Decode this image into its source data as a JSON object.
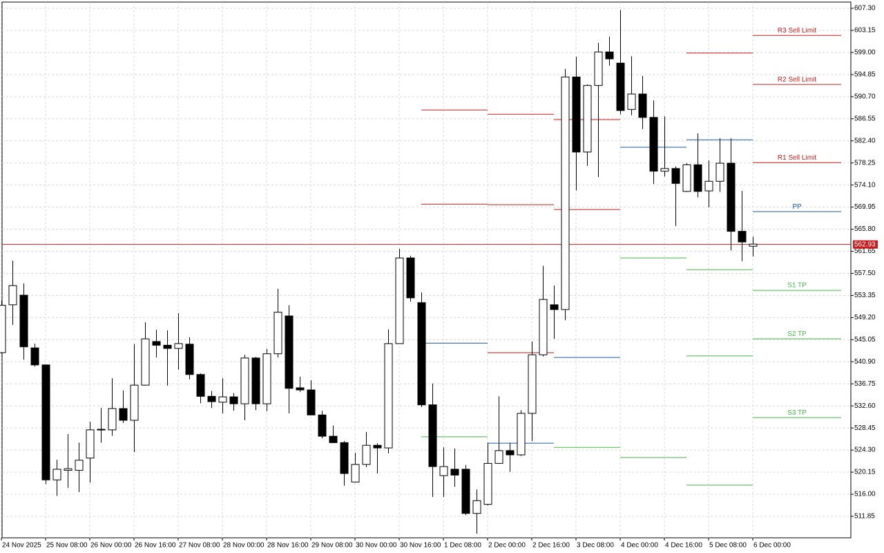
{
  "chart_data": {
    "type": "candlestick",
    "categories": [
      "24 Nov 2025",
      null,
      null,
      null,
      "25 Nov 08:00",
      null,
      null,
      null,
      "26 Nov 00:00",
      null,
      null,
      null,
      "26 Nov 16:00",
      null,
      null,
      null,
      "27 Nov 08:00",
      null,
      null,
      null,
      "28 Nov 00:00",
      null,
      null,
      null,
      "28 Nov 16:00",
      null,
      null,
      null,
      "29 Nov 08:00",
      null,
      null,
      null,
      "30 Nov 00:00",
      null,
      null,
      null,
      "30 Nov 16:00",
      null,
      null,
      null,
      "1 Dec 08:00",
      null,
      null,
      null,
      "2 Dec 00:00",
      null,
      null,
      null,
      "2 Dec 16:00",
      null,
      null,
      null,
      "3 Dec 08:00",
      null,
      null,
      null,
      "4 Dec 00:00",
      null,
      null,
      null,
      "4 Dec 16:00",
      null,
      null,
      null,
      "5 Dec 08:00",
      null,
      null,
      null,
      "6 Dec 00:00"
    ],
    "open": [
      542.6,
      551.6,
      553.4,
      543.5,
      540.3,
      518.7,
      520.5,
      520.5,
      522.8,
      528.1,
      528.1,
      532.1,
      529.9,
      536.5,
      544.7,
      544.0,
      543.4,
      544.2,
      538.5,
      534.4,
      533.3,
      534.3,
      533.0,
      541.6,
      533.0,
      542.4,
      549.5,
      536.0,
      535.6,
      530.9,
      526.9,
      525.7,
      518.3,
      521.6,
      525.2,
      524.7,
      544.3,
      560.4,
      552.0,
      532.8,
      519.5,
      520.7,
      520.7,
      512.4,
      514.1,
      521.8,
      524.2,
      523.4,
      531.2,
      542.2,
      551.6,
      550.7,
      594.4,
      580.3,
      592.8,
      599.1,
      597.0,
      588.3,
      591.2,
      586.8,
      576.7,
      577.2,
      572.9,
      577.9,
      573.0,
      574.8,
      578.2,
      565.4,
      562.6
    ],
    "high": [
      552.4,
      559.9,
      555.6,
      544.3,
      540.3,
      522.5,
      527.3,
      525.7,
      529.6,
      532.2,
      537.8,
      535.5,
      544.2,
      548.3,
      546.9,
      546.8,
      550.0,
      545.5,
      538.7,
      535.4,
      537.8,
      535.0,
      542.2,
      541.8,
      543.3,
      554.6,
      551.5,
      538.1,
      537.4,
      531.7,
      528.9,
      526.0,
      523.8,
      527.7,
      525.6,
      547.0,
      562.1,
      560.8,
      553.9,
      536.8,
      524.8,
      524.6,
      521.5,
      516.9,
      525.7,
      534.4,
      525.7,
      531.8,
      544.7,
      558.9,
      555.2,
      595.9,
      598.2,
      593.0,
      600.8,
      602.0,
      607.0,
      598.3,
      594.6,
      590.0,
      587.0,
      577.6,
      578.2,
      583.8,
      578.7,
      582.9,
      582.9,
      573.0,
      564.4
    ],
    "low": [
      542.4,
      547.8,
      541.3,
      540.0,
      517.9,
      515.7,
      517.2,
      516.4,
      518.2,
      525.7,
      527.0,
      529.4,
      523.9,
      536.4,
      541.7,
      536.4,
      539.4,
      537.6,
      533.1,
      532.2,
      531.2,
      531.7,
      529.9,
      531.8,
      531.6,
      541.7,
      531.2,
      535.2,
      530.9,
      526.5,
      525.6,
      517.6,
      518.2,
      521.1,
      519.9,
      523.7,
      544.3,
      552.2,
      532.4,
      515.5,
      515.5,
      517.4,
      512.1,
      508.6,
      513.9,
      521.7,
      520.2,
      523.2,
      526.0,
      541.9,
      545.2,
      548.7,
      573.1,
      577.7,
      575.6,
      596.5,
      587.4,
      587.2,
      584.6,
      574.3,
      575.7,
      566.4,
      572.8,
      571.8,
      569.9,
      572.8,
      561.8,
      559.8,
      560.7
    ],
    "close": [
      551.5,
      555.2,
      543.7,
      540.3,
      518.7,
      520.7,
      520.8,
      522.4,
      528.1,
      528.2,
      532.1,
      529.9,
      536.5,
      545.2,
      544.0,
      543.4,
      544.3,
      538.5,
      534.4,
      533.4,
      534.3,
      533.0,
      541.6,
      533.0,
      542.4,
      550.2,
      535.9,
      535.6,
      530.9,
      526.9,
      525.7,
      519.9,
      521.6,
      525.2,
      524.7,
      544.3,
      560.4,
      552.9,
      532.8,
      521.2,
      521.2,
      519.6,
      512.4,
      514.8,
      521.8,
      524.2,
      523.4,
      531.2,
      542.2,
      552.6,
      550.7,
      594.4,
      580.3,
      592.8,
      599.1,
      597.8,
      588.1,
      591.2,
      586.8,
      576.7,
      577.2,
      574.4,
      577.9,
      572.9,
      574.8,
      578.2,
      565.4,
      563.4,
      563.0
    ],
    "up_color": "#ffffff",
    "down_color": "#000000",
    "ylim": [
      507.82,
      608.47
    ],
    "yticks": [
      {
        "value": 607.3,
        "label": "607.30"
      },
      {
        "value": 603.15,
        "label": "603.15"
      },
      {
        "value": 599,
        "label": "599.00"
      },
      {
        "value": 594.85,
        "label": "594.85"
      },
      {
        "value": 590.7,
        "label": "590.70"
      },
      {
        "value": 586.55,
        "label": "586.55"
      },
      {
        "value": 582.4,
        "label": "582.40"
      },
      {
        "value": 578.25,
        "label": "578.25"
      },
      {
        "value": 574.1,
        "label": "574.10"
      },
      {
        "value": 569.95,
        "label": "569.95"
      },
      {
        "value": 565.8,
        "label": "565.80"
      },
      {
        "value": 561.65,
        "label": "561.65"
      },
      {
        "value": 557.5,
        "label": "557.50"
      },
      {
        "value": 553.35,
        "label": "553.35"
      },
      {
        "value": 549.2,
        "label": "549.20"
      },
      {
        "value": 545.05,
        "label": "545.05"
      },
      {
        "value": 540.9,
        "label": "540.90"
      },
      {
        "value": 536.75,
        "label": "536.75"
      },
      {
        "value": 532.6,
        "label": "532.60"
      },
      {
        "value": 528.45,
        "label": "528.45"
      },
      {
        "value": 524.3,
        "label": "524.30"
      },
      {
        "value": 520.15,
        "label": "520.15"
      },
      {
        "value": 516,
        "label": "516.00"
      },
      {
        "value": 511.85,
        "label": "511.85"
      }
    ],
    "grid": true,
    "last_price": 562.93,
    "last_price_color": "#c81e1e",
    "levels": [
      {
        "value": 588.2,
        "color": "#c81e1e",
        "x": [
          38,
          44
        ]
      },
      {
        "value": 570.5,
        "color": "#c81e1e",
        "x": [
          38,
          44
        ]
      },
      {
        "value": 544.4,
        "color": "#1f5aa6",
        "x": [
          38,
          44
        ]
      },
      {
        "value": 526.8,
        "color": "#44b844",
        "x": [
          38,
          44
        ]
      },
      {
        "value": 587.4,
        "color": "#c81e1e",
        "x": [
          44,
          50
        ]
      },
      {
        "value": 570.4,
        "color": "#c81e1e",
        "x": [
          44,
          50
        ]
      },
      {
        "value": 542.6,
        "color": "#c81e1e",
        "x": [
          44,
          50
        ]
      },
      {
        "value": 525.6,
        "color": "#1f5aa6",
        "x": [
          44,
          50
        ]
      },
      {
        "value": 586.4,
        "color": "#c81e1e",
        "x": [
          50,
          56
        ]
      },
      {
        "value": 569.5,
        "color": "#c81e1e",
        "x": [
          50,
          56
        ]
      },
      {
        "value": 541.7,
        "color": "#1f5aa6",
        "x": [
          50,
          56
        ]
      },
      {
        "value": 524.8,
        "color": "#44b844",
        "x": [
          50,
          56
        ]
      },
      {
        "value": 581.2,
        "color": "#1f5aa6",
        "x": [
          56,
          62
        ]
      },
      {
        "value": 560.4,
        "color": "#44b844",
        "x": [
          56,
          62
        ]
      },
      {
        "value": 522.9,
        "color": "#44b844",
        "x": [
          56,
          62
        ]
      },
      {
        "value": 598.9,
        "color": "#c81e1e",
        "x": [
          62,
          68
        ]
      },
      {
        "value": 582.6,
        "color": "#1f5aa6",
        "x": [
          62,
          68
        ]
      },
      {
        "value": 558.2,
        "color": "#44b844",
        "x": [
          62,
          68
        ]
      },
      {
        "value": 542.0,
        "color": "#44b844",
        "x": [
          62,
          68
        ]
      },
      {
        "value": 517.7,
        "color": "#44b844",
        "x": [
          62,
          68
        ]
      },
      {
        "value": 602.2,
        "color": "#c81e1e",
        "x": [
          68,
          76
        ],
        "label": "R3 Sell Limit"
      },
      {
        "value": 593.0,
        "color": "#c81e1e",
        "x": [
          68,
          76
        ],
        "label": "R2 Sell Limit"
      },
      {
        "value": 578.3,
        "color": "#c81e1e",
        "x": [
          68,
          76
        ],
        "label": "R1 Sell Limit"
      },
      {
        "value": 569.1,
        "color": "#1f5aa6",
        "x": [
          68,
          76
        ],
        "label": "PP"
      },
      {
        "value": 554.3,
        "color": "#44b844",
        "x": [
          68,
          76
        ],
        "label": "S1 TP"
      },
      {
        "value": 545.2,
        "color": "#44b844",
        "x": [
          68,
          76
        ],
        "label": "S2 TP"
      },
      {
        "value": 530.4,
        "color": "#44b844",
        "x": [
          68,
          76
        ],
        "label": "S3 TP"
      }
    ]
  }
}
